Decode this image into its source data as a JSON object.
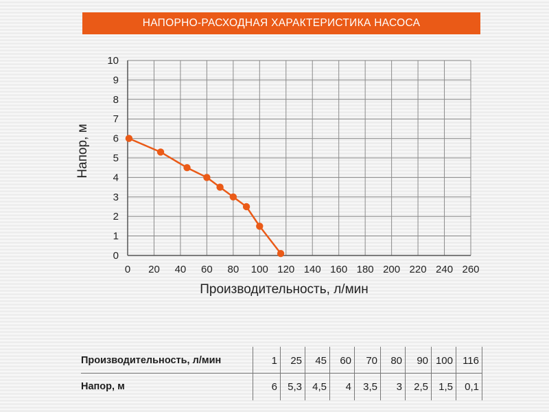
{
  "header": {
    "title": "НАПОРНО-РАСХОДНАЯ ХАРАКТЕРИСТИКА НАСОСА"
  },
  "colors": {
    "accent": "#ea5a17",
    "grid": "#8a8a8a",
    "text": "#1e1e1e"
  },
  "chart_data": {
    "type": "line",
    "title": "НАПОРНО-РАСХОДНАЯ ХАРАКТЕРИСТИКА НАСОСА",
    "xlabel": "Производительность, л/мин",
    "ylabel": "Напор, м",
    "xlim": [
      0,
      260
    ],
    "ylim": [
      0,
      10
    ],
    "x_ticks": [
      0,
      20,
      40,
      60,
      80,
      100,
      120,
      140,
      160,
      180,
      200,
      220,
      240,
      260
    ],
    "y_ticks": [
      0,
      1,
      2,
      3,
      4,
      5,
      6,
      7,
      8,
      9,
      10
    ],
    "grid": true,
    "series": [
      {
        "x": [
          1,
          25,
          45,
          60,
          70,
          80,
          90,
          100,
          116
        ],
        "y": [
          6,
          5.3,
          4.5,
          4,
          3.5,
          3,
          2.5,
          1.5,
          0.1
        ],
        "color": "#ea5a17"
      }
    ]
  },
  "table": {
    "row1_label": "Производительность, л/мин",
    "row2_label": "Напор, м",
    "flow": [
      "1",
      "25",
      "45",
      "60",
      "70",
      "80",
      "90",
      "100",
      "116"
    ],
    "head": [
      "6",
      "5,3",
      "4,5",
      "4",
      "3,5",
      "3",
      "2,5",
      "1,5",
      "0,1"
    ]
  }
}
